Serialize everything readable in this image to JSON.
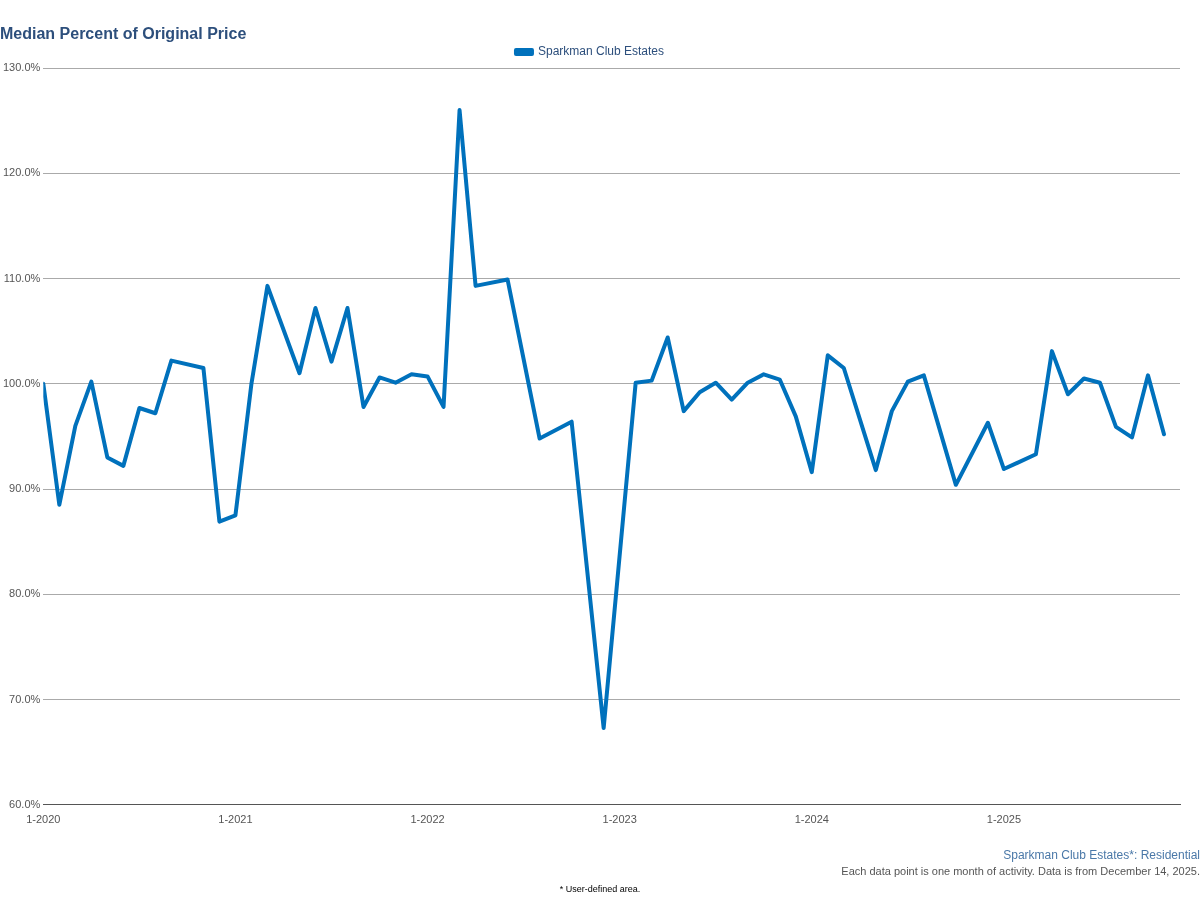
{
  "chart_data": {
    "type": "line",
    "title": "Median Percent of Original Price",
    "x": [
      "2020-01",
      "2020-02",
      "2020-03",
      "2020-04",
      "2020-05",
      "2020-06",
      "2020-07",
      "2020-08",
      "2020-09",
      "2020-11",
      "2020-12",
      "2021-01",
      "2021-02",
      "2021-03",
      "2021-05",
      "2021-06",
      "2021-07",
      "2021-08",
      "2021-09",
      "2021-10",
      "2021-11",
      "2021-12",
      "2022-01",
      "2022-02",
      "2022-03",
      "2022-04",
      "2022-06",
      "2022-08",
      "2022-10",
      "2022-12",
      "2023-02",
      "2023-03",
      "2023-04",
      "2023-05",
      "2023-06",
      "2023-07",
      "2023-08",
      "2023-09",
      "2023-10",
      "2023-11",
      "2023-12",
      "2024-01",
      "2024-02",
      "2024-03",
      "2024-05",
      "2024-06",
      "2024-07",
      "2024-08",
      "2024-10",
      "2024-12",
      "2025-01",
      "2025-03",
      "2025-04",
      "2025-05",
      "2025-06",
      "2025-07",
      "2025-08",
      "2025-09",
      "2025-10",
      "2025-11"
    ],
    "series": [
      {
        "name": "Sparkman Club Estates",
        "color": "#0071bc",
        "values": [
          100.0,
          88.5,
          96.0,
          100.2,
          93.0,
          92.2,
          97.7,
          97.2,
          102.2,
          101.5,
          86.9,
          87.5,
          100.0,
          109.3,
          101.0,
          107.2,
          102.1,
          107.2,
          97.8,
          100.6,
          100.1,
          100.9,
          100.7,
          97.8,
          126.0,
          109.3,
          109.9,
          94.8,
          96.4,
          67.3,
          100.1,
          100.3,
          104.4,
          97.4,
          99.2,
          100.1,
          98.5,
          100.1,
          100.9,
          100.4,
          96.9,
          91.6,
          102.7,
          101.5,
          91.8,
          97.4,
          100.2,
          100.8,
          90.4,
          96.3,
          91.9,
          93.3,
          103.1,
          99.0,
          100.5,
          100.1,
          95.9,
          94.9,
          100.8,
          95.2
        ]
      }
    ],
    "xlim": [
      "2020-01",
      "2025-12"
    ],
    "xticks": [
      {
        "value": "2020-01",
        "label": "1-2020"
      },
      {
        "value": "2021-01",
        "label": "1-2021"
      },
      {
        "value": "2022-01",
        "label": "1-2022"
      },
      {
        "value": "2023-01",
        "label": "1-2023"
      },
      {
        "value": "2024-01",
        "label": "1-2024"
      },
      {
        "value": "2025-01",
        "label": "1-2025"
      }
    ],
    "ylim": [
      60,
      130
    ],
    "yticks": [
      {
        "value": 60,
        "label": "60.0%"
      },
      {
        "value": 70,
        "label": "70.0%"
      },
      {
        "value": 80,
        "label": "80.0%"
      },
      {
        "value": 90,
        "label": "90.0%"
      },
      {
        "value": 100,
        "label": "100.0%"
      },
      {
        "value": 110,
        "label": "110.0%"
      },
      {
        "value": 120,
        "label": "120.0%"
      },
      {
        "value": 130,
        "label": "130.0%"
      }
    ],
    "grid": "y",
    "legend": "top",
    "marker": "none",
    "line_style": "solid",
    "annotations": [
      "Sparkman Club Estates*: Residential",
      "Each data point is one month of activity. Data is from December 14, 2025.",
      "* User-defined area."
    ]
  }
}
